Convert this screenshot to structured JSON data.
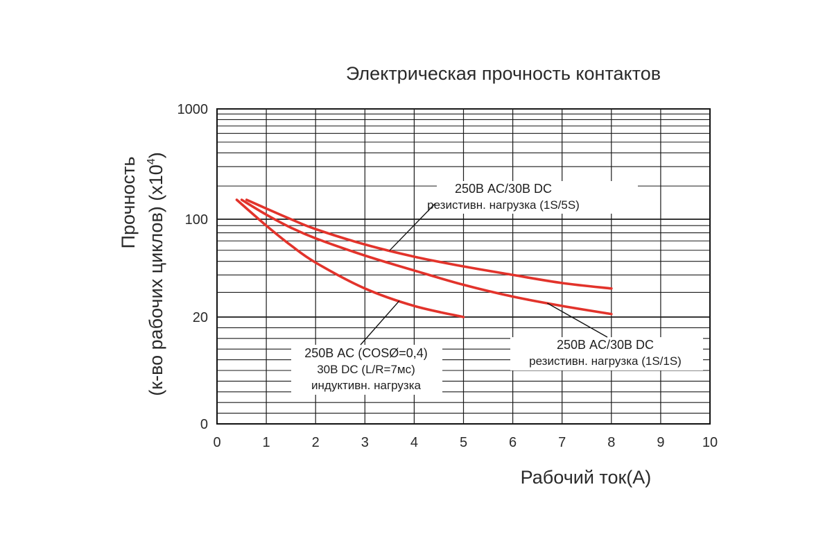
{
  "chart_data": {
    "type": "line",
    "title": "Электрическая прочность контактов",
    "xlabel": "Рабочий ток(А)",
    "ylabel_line1": "Прочность",
    "ylabel_line2_main": "(к-во рабочих циклов) (x10",
    "ylabel_line2_exp": "4",
    "ylabel_line2_close": ")",
    "xlim": [
      0,
      10
    ],
    "x_ticks": [
      "0",
      "1",
      "2",
      "3",
      "4",
      "5",
      "6",
      "7",
      "8",
      "9",
      "10"
    ],
    "y_ticks": [
      {
        "value": 0,
        "label": "0"
      },
      {
        "value": 20,
        "label": "20"
      },
      {
        "value": 100,
        "label": "100"
      },
      {
        "value": 1000,
        "label": "1000"
      }
    ],
    "y_scale": "broken log",
    "grid": true,
    "series": [
      {
        "id": "resistive-1s5s",
        "color": "#e2332b",
        "x": [
          0.6,
          1.0,
          1.5,
          2.0,
          3.0,
          4.0,
          5.0,
          6.0,
          7.0,
          8.0
        ],
        "y": [
          150,
          125,
          100,
          85,
          66,
          54,
          46,
          40,
          35,
          32
        ]
      },
      {
        "id": "resistive-1s1s",
        "color": "#e2332b",
        "x": [
          0.5,
          1.0,
          1.5,
          2.0,
          3.0,
          4.0,
          5.0,
          6.0,
          7.0,
          8.0
        ],
        "y": [
          150,
          110,
          87,
          73,
          55,
          43,
          34,
          28,
          24,
          21
        ]
      },
      {
        "id": "inductive",
        "color": "#e2332b",
        "x": [
          0.4,
          1.0,
          1.5,
          2.0,
          3.0,
          4.0,
          5.0
        ],
        "y": [
          150,
          90,
          65,
          49,
          32,
          24,
          20
        ]
      }
    ],
    "annotations": [
      {
        "id": "ann-1s5s",
        "lines": [
          "250В AC/30В DC",
          "резистивн. нагрузка (1S/5S)"
        ],
        "series": "resistive-1s5s",
        "point_x": 3.5
      },
      {
        "id": "ann-1s1s",
        "lines": [
          "250В AC/30В DC",
          "резистивн. нагрузка (1S/1S)"
        ],
        "series": "resistive-1s1s",
        "point_x": 6.7
      },
      {
        "id": "ann-inductive",
        "lines": [
          "250В AC (COSØ=0,4)",
          "30В DC (L/R=7мс)",
          "индуктивн. нагрузка"
        ],
        "series": "inductive",
        "point_x": 3.7
      }
    ]
  }
}
